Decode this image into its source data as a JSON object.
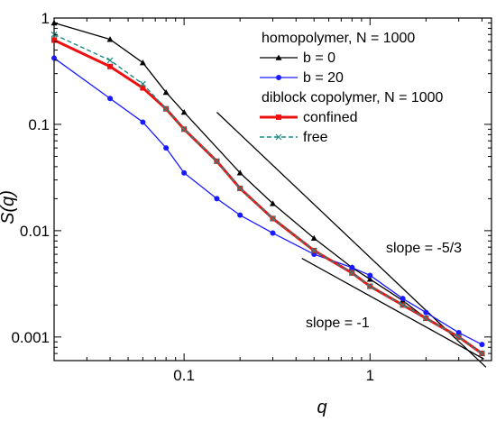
{
  "chart_data": {
    "type": "line",
    "xscale": "log",
    "yscale": "log",
    "xlim": [
      0.02,
      4.5
    ],
    "ylim": [
      0.0006,
      1
    ],
    "xlabel": "q",
    "ylabel": "S(q)",
    "x_ticks": [
      {
        "value": 0.1,
        "label": "0.1"
      },
      {
        "value": 1,
        "label": "1"
      }
    ],
    "y_ticks": [
      {
        "value": 0.001,
        "label": "0.001"
      },
      {
        "value": 0.01,
        "label": "0.01"
      },
      {
        "value": 0.1,
        "label": "0.1"
      },
      {
        "value": 1,
        "label": "1"
      }
    ],
    "legend": {
      "placement": "top-right",
      "headers": [
        "homopolymer, N = 1000",
        "diblock copolymer, N = 1000"
      ]
    },
    "series": [
      {
        "name": "b = 0",
        "group": "homopolymer",
        "color": "#000000",
        "marker": "triangle",
        "dash": "solid",
        "x": [
          0.02,
          0.04,
          0.06,
          0.08,
          0.1,
          0.2,
          0.3,
          0.5,
          0.8,
          1,
          1.5,
          2,
          3,
          4
        ],
        "y": [
          0.9,
          0.63,
          0.38,
          0.2,
          0.13,
          0.035,
          0.018,
          0.0085,
          0.0045,
          0.0035,
          0.0022,
          0.0015,
          0.001,
          0.0007
        ]
      },
      {
        "name": "b = 20",
        "group": "homopolymer",
        "color": "#1a1aff",
        "marker": "circle",
        "dash": "solid",
        "x": [
          0.02,
          0.04,
          0.06,
          0.08,
          0.1,
          0.15,
          0.2,
          0.3,
          0.5,
          0.8,
          1,
          1.5,
          2,
          3,
          4
        ],
        "y": [
          0.42,
          0.175,
          0.105,
          0.06,
          0.035,
          0.02,
          0.014,
          0.0095,
          0.006,
          0.0045,
          0.0038,
          0.0023,
          0.0017,
          0.0011,
          0.00085
        ]
      },
      {
        "name": "confined",
        "group": "diblock copolymer",
        "color": "#ee1111",
        "marker": "square",
        "dash": "solid",
        "x": [
          0.02,
          0.04,
          0.06,
          0.08,
          0.1,
          0.15,
          0.2,
          0.3,
          0.5,
          0.8,
          1,
          1.5,
          2,
          3,
          4
        ],
        "y": [
          0.62,
          0.35,
          0.22,
          0.14,
          0.09,
          0.045,
          0.025,
          0.013,
          0.0065,
          0.004,
          0.003,
          0.002,
          0.0015,
          0.001,
          0.0007
        ]
      },
      {
        "name": "free",
        "group": "diblock copolymer",
        "color": "#1f8a80",
        "marker": "cross",
        "dash": "dashed",
        "x": [
          0.02,
          0.04,
          0.06,
          0.08,
          0.1,
          0.15,
          0.2,
          0.3,
          0.5,
          0.8,
          1,
          1.5,
          2,
          3,
          4
        ],
        "y": [
          0.7,
          0.4,
          0.24,
          0.14,
          0.09,
          0.045,
          0.025,
          0.013,
          0.0065,
          0.004,
          0.003,
          0.002,
          0.0015,
          0.001,
          0.0007
        ]
      }
    ],
    "reference_lines": [
      {
        "label": "slope = -5/3",
        "x": [
          0.15,
          4.2
        ],
        "y": [
          0.13,
          0.00052
        ]
      },
      {
        "label": "slope = -1",
        "x": [
          0.43,
          4.1
        ],
        "y": [
          0.0055,
          0.00062
        ]
      }
    ]
  }
}
